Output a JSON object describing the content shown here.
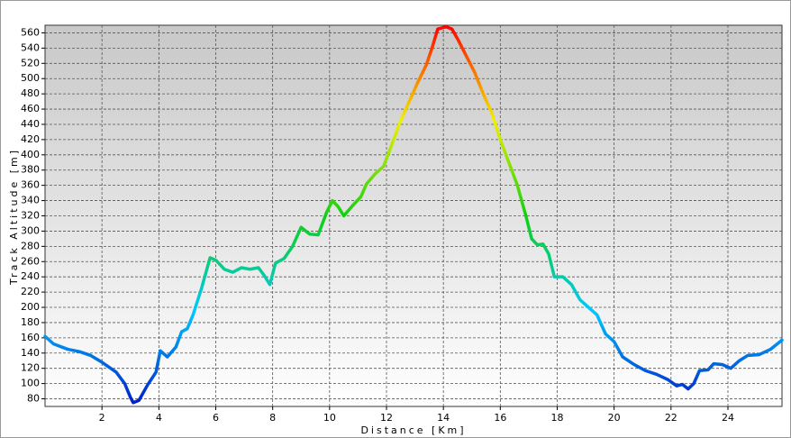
{
  "chart_data": {
    "type": "line",
    "x_label": "Distance [Km]",
    "y_label": "Track Altitude [m]",
    "x": [
      0,
      0.3,
      0.8,
      1.2,
      1.6,
      2,
      2.5,
      2.8,
      3.0,
      3.1,
      3.3,
      3.6,
      3.9,
      4.05,
      4.3,
      4.6,
      4.8,
      5.0,
      5.2,
      5.5,
      5.8,
      6.0,
      6.3,
      6.6,
      6.9,
      7.2,
      7.5,
      7.7,
      7.9,
      8.1,
      8.4,
      8.7,
      9.0,
      9.3,
      9.6,
      9.9,
      10.1,
      10.3,
      10.5,
      10.8,
      11.1,
      11.3,
      11.6,
      11.9,
      12.2,
      12.5,
      12.8,
      13.1,
      13.4,
      13.6,
      13.8,
      14.1,
      14.3,
      14.5,
      14.8,
      15.1,
      15.4,
      15.7,
      16.0,
      16.3,
      16.6,
      16.9,
      17.1,
      17.3,
      17.5,
      17.7,
      17.9,
      18.2,
      18.5,
      18.8,
      19.1,
      19.4,
      19.7,
      20.0,
      20.3,
      20.7,
      21.1,
      21.5,
      21.9,
      22.2,
      22.4,
      22.6,
      22.8,
      23.0,
      23.3,
      23.5,
      23.8,
      24.1,
      24.4,
      24.7,
      25.1,
      25.5,
      25.9
    ],
    "series": [
      {
        "name": "Track Altitude",
        "colors": [
          "#0018c8",
          "#00c8ff",
          "#10d010",
          "#f0f000",
          "#ff0000"
        ],
        "values": [
          162,
          152,
          145,
          142,
          137,
          128,
          115,
          100,
          82,
          75,
          78,
          98,
          115,
          143,
          135,
          148,
          168,
          172,
          190,
          225,
          265,
          262,
          250,
          246,
          252,
          250,
          252,
          242,
          230,
          258,
          264,
          280,
          305,
          296,
          295,
          325,
          340,
          332,
          320,
          333,
          345,
          362,
          375,
          385,
          415,
          445,
          470,
          495,
          518,
          540,
          565,
          568,
          565,
          552,
          530,
          508,
          480,
          455,
          420,
          390,
          360,
          320,
          290,
          282,
          283,
          270,
          240,
          240,
          230,
          210,
          200,
          190,
          165,
          155,
          135,
          125,
          117,
          112,
          105,
          97,
          99,
          93,
          100,
          117,
          118,
          126,
          125,
          120,
          130,
          137,
          138,
          145,
          157
        ]
      }
    ],
    "xlim": [
      0,
      25.9
    ],
    "ylim": [
      70,
      570
    ],
    "xticks": [
      2,
      4,
      6,
      8,
      10,
      12,
      14,
      16,
      18,
      20,
      22,
      24
    ],
    "yticks": [
      80,
      100,
      120,
      140,
      160,
      180,
      200,
      220,
      240,
      260,
      280,
      300,
      320,
      340,
      360,
      380,
      400,
      420,
      440,
      460,
      480,
      500,
      520,
      540,
      560
    ],
    "grid": true
  }
}
